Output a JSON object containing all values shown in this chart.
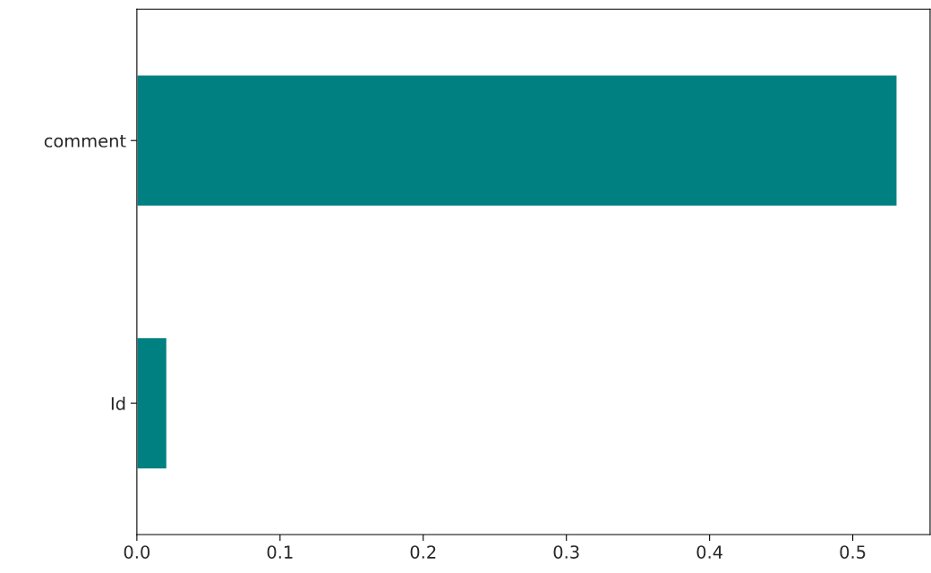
{
  "chart_data": {
    "type": "bar",
    "orientation": "horizontal",
    "categories": [
      "comment",
      "Id"
    ],
    "values": [
      0.531,
      0.021
    ],
    "color": "#008080",
    "xlim": [
      0,
      0.554
    ],
    "xticks": [
      {
        "value": 0,
        "label": "0.0"
      },
      0.1,
      0.2,
      0.3,
      0.4,
      0.5
    ],
    "grid": false
  }
}
